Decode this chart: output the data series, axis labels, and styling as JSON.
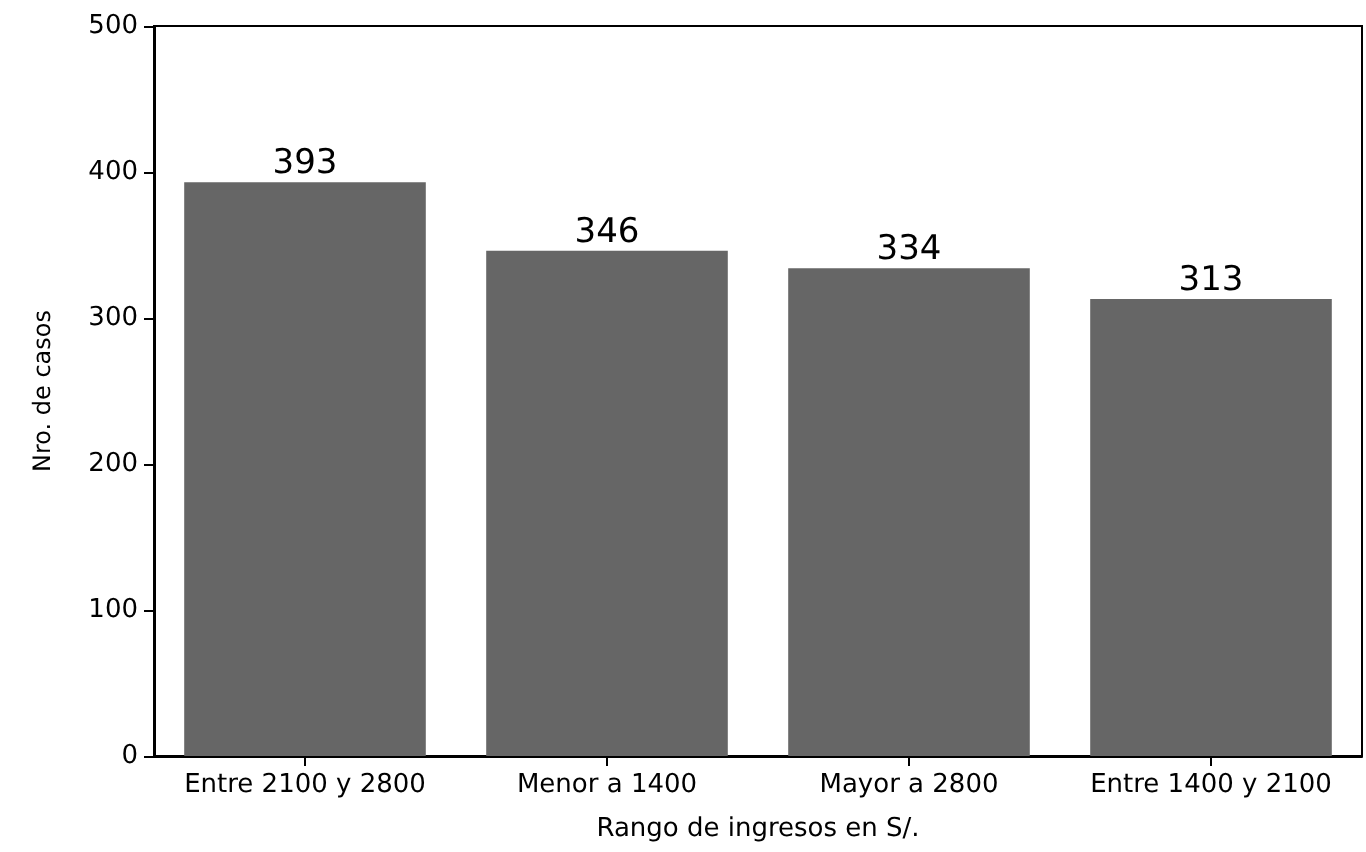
{
  "chart_data": {
    "type": "bar",
    "xlabel": "Rango de ingresos en S/.",
    "ylabel": "Nro. de casos",
    "categories": [
      "Entre 2100 y 2800",
      "Menor a 1400",
      "Mayor a 2800",
      "Entre 1400 y 2100"
    ],
    "values": [
      393,
      346,
      334,
      313
    ],
    "color": "#666666",
    "ylim": [
      0,
      500
    ],
    "yticks": [
      0,
      100,
      200,
      300,
      400,
      500
    ],
    "grid": false,
    "data_labels": true
  }
}
